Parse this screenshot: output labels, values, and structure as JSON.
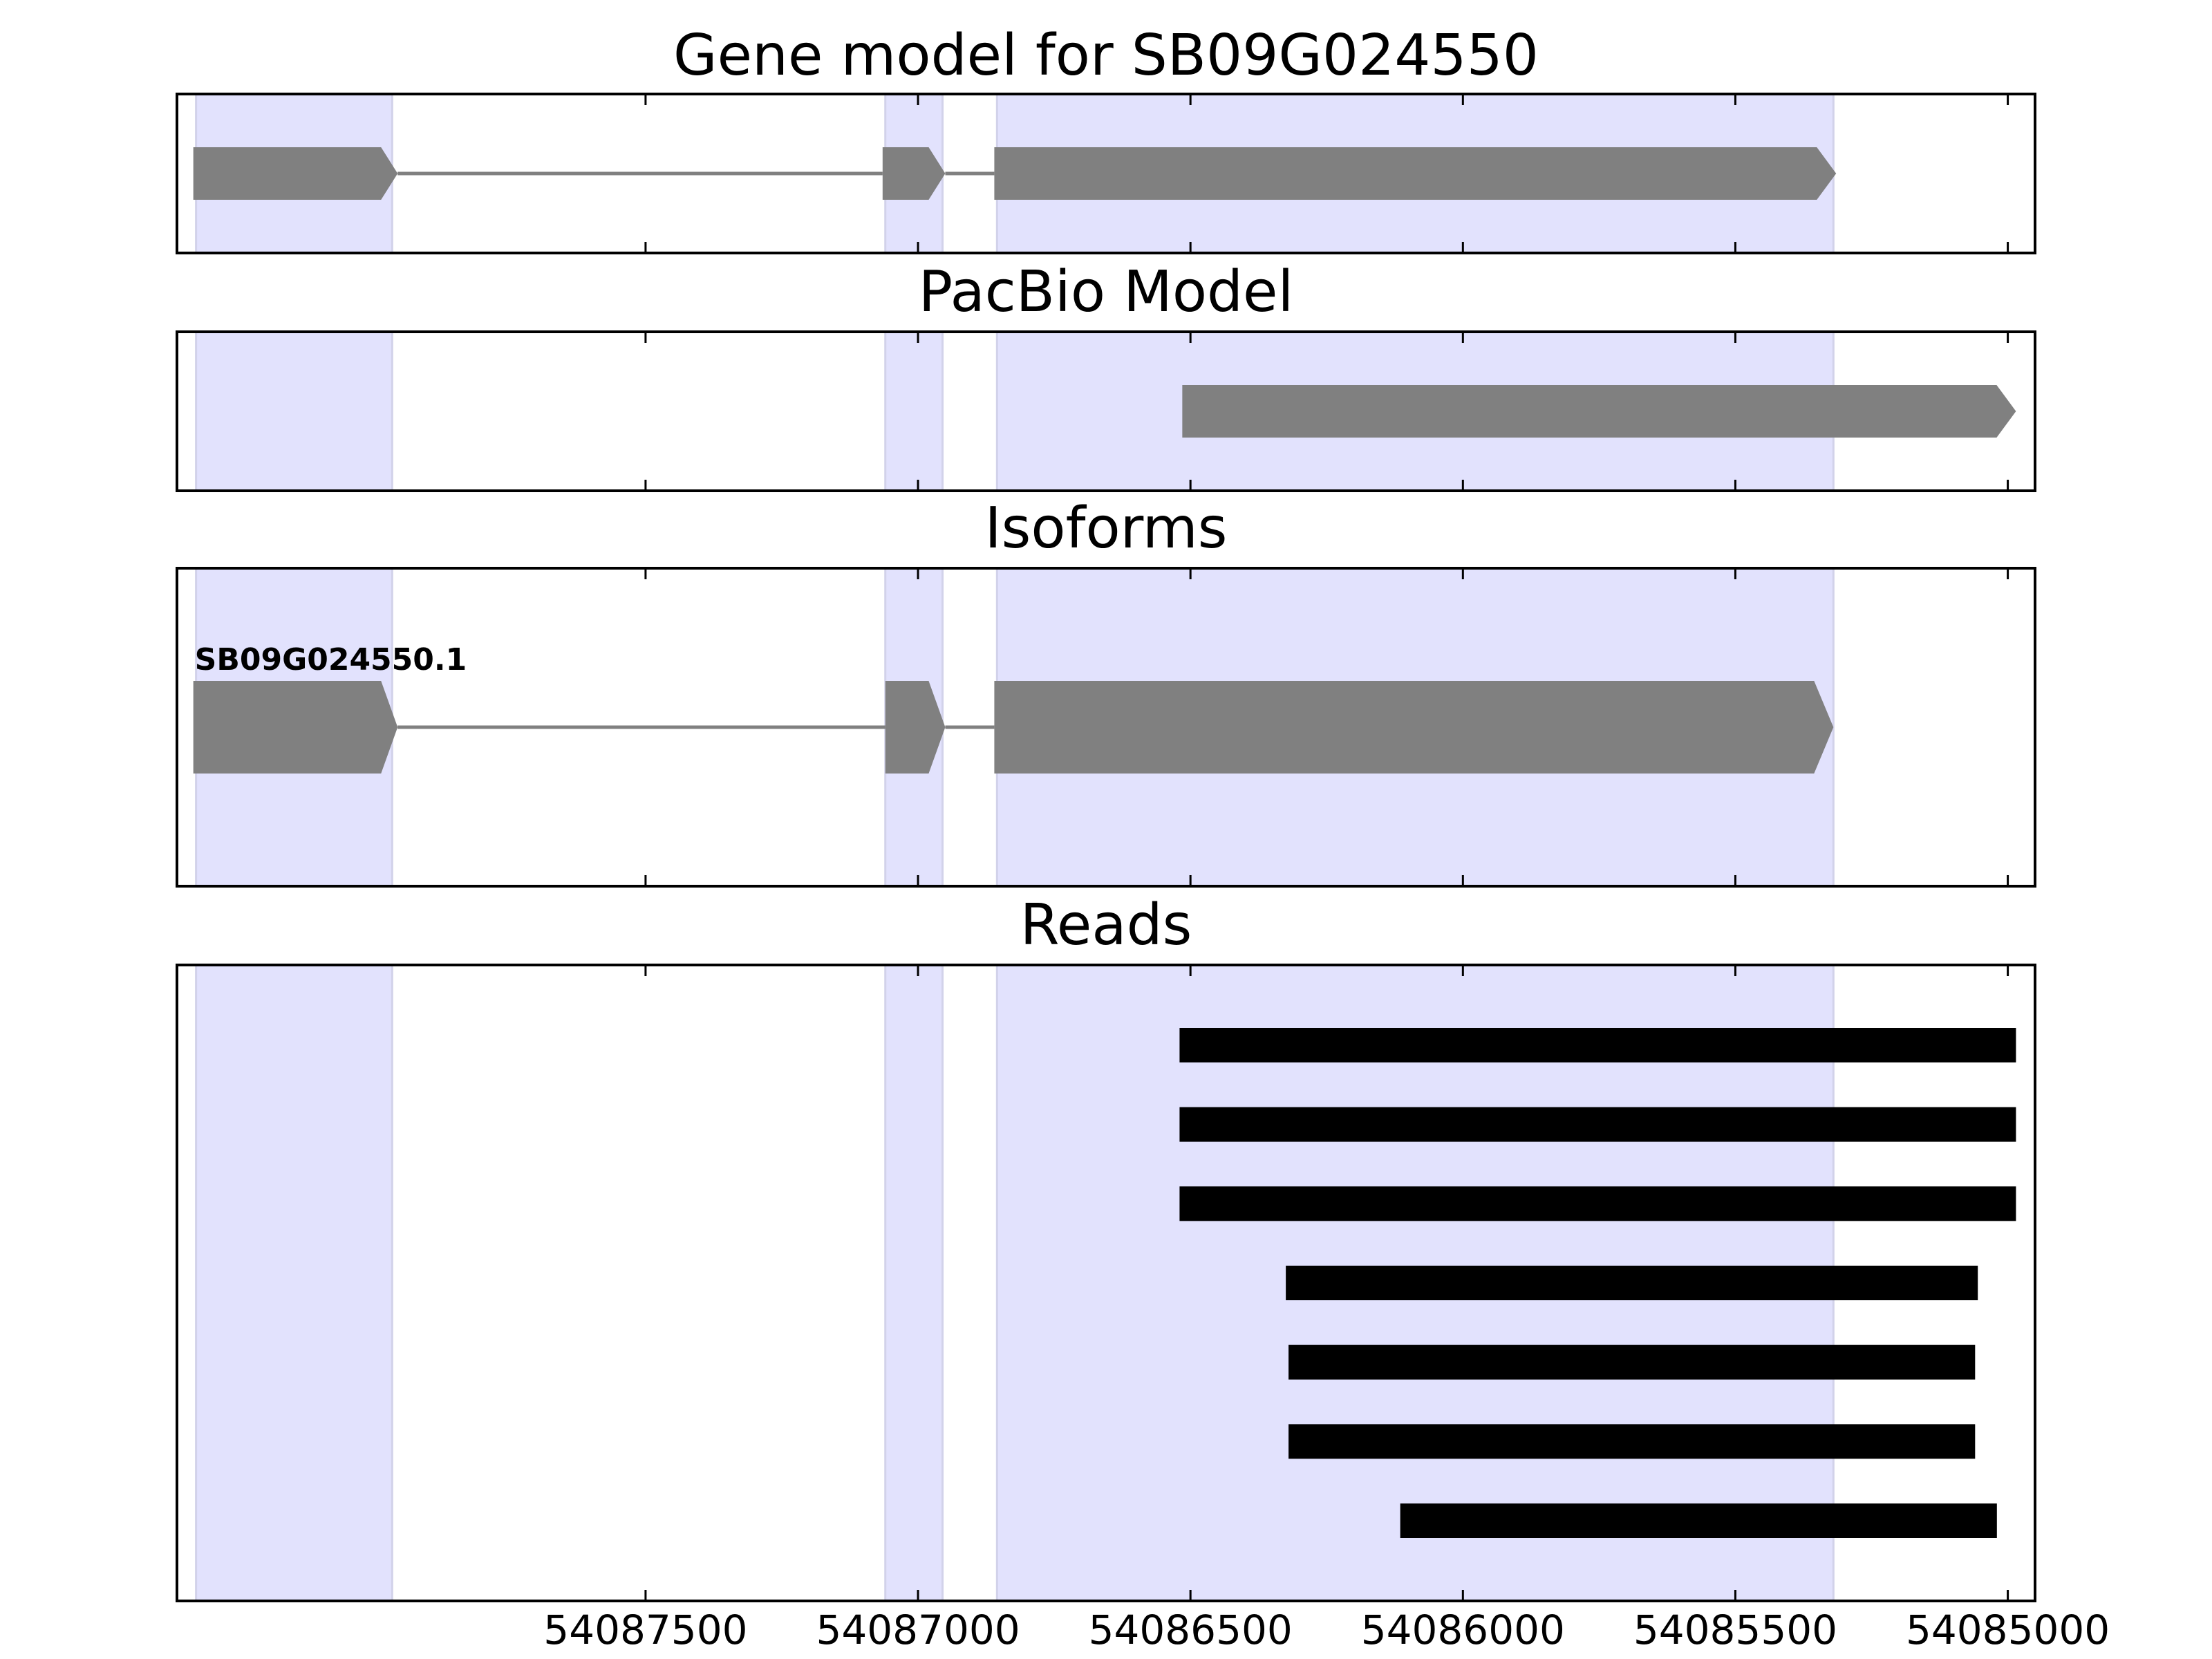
{
  "chart_data": {
    "type": "gene-track",
    "x_axis": {
      "range": [
        54088360,
        54084950
      ],
      "direction": "reversed",
      "ticks": [
        54087500,
        54087000,
        54086500,
        54086000,
        54085500,
        54085000
      ],
      "tick_labels": [
        "54087500",
        "54087000",
        "54086500",
        "54086000",
        "54085500",
        "54085000"
      ]
    },
    "highlight_color": "#e2e2fd",
    "feature_color": "#808080",
    "read_color": "#000000",
    "exon_regions": [
      {
        "start": 54088325,
        "end": 54087965
      },
      {
        "start": 54087060,
        "end": 54086955
      },
      {
        "start": 54086855,
        "end": 54085320
      }
    ],
    "panels": [
      {
        "id": "gene-model",
        "title": "Gene model for SB09G024550",
        "tracks": [
          {
            "label": "",
            "strand": "-",
            "exons": [
              {
                "start": 54088330,
                "end": 54087955
              },
              {
                "start": 54087065,
                "end": 54086950
              },
              {
                "start": 54086860,
                "end": 54085315
              }
            ]
          }
        ]
      },
      {
        "id": "pacbio-model",
        "title": "PacBio Model",
        "tracks": [
          {
            "label": "",
            "strand": "-",
            "exons": [
              {
                "start": 54086515,
                "end": 54084985
              }
            ]
          }
        ]
      },
      {
        "id": "isoforms",
        "title": "Isoforms",
        "tracks": [
          {
            "label": "SB09G024550.1",
            "strand": "-",
            "exons": [
              {
                "start": 54088330,
                "end": 54087955
              },
              {
                "start": 54087060,
                "end": 54086950
              },
              {
                "start": 54086860,
                "end": 54085320
              }
            ]
          }
        ]
      },
      {
        "id": "reads",
        "title": "Reads",
        "reads": [
          {
            "start": 54086520,
            "end": 54084985
          },
          {
            "start": 54086520,
            "end": 54084985
          },
          {
            "start": 54086520,
            "end": 54084985
          },
          {
            "start": 54086325,
            "end": 54085055
          },
          {
            "start": 54086320,
            "end": 54085060
          },
          {
            "start": 54086320,
            "end": 54085060
          },
          {
            "start": 54086115,
            "end": 54085020
          }
        ]
      }
    ]
  }
}
